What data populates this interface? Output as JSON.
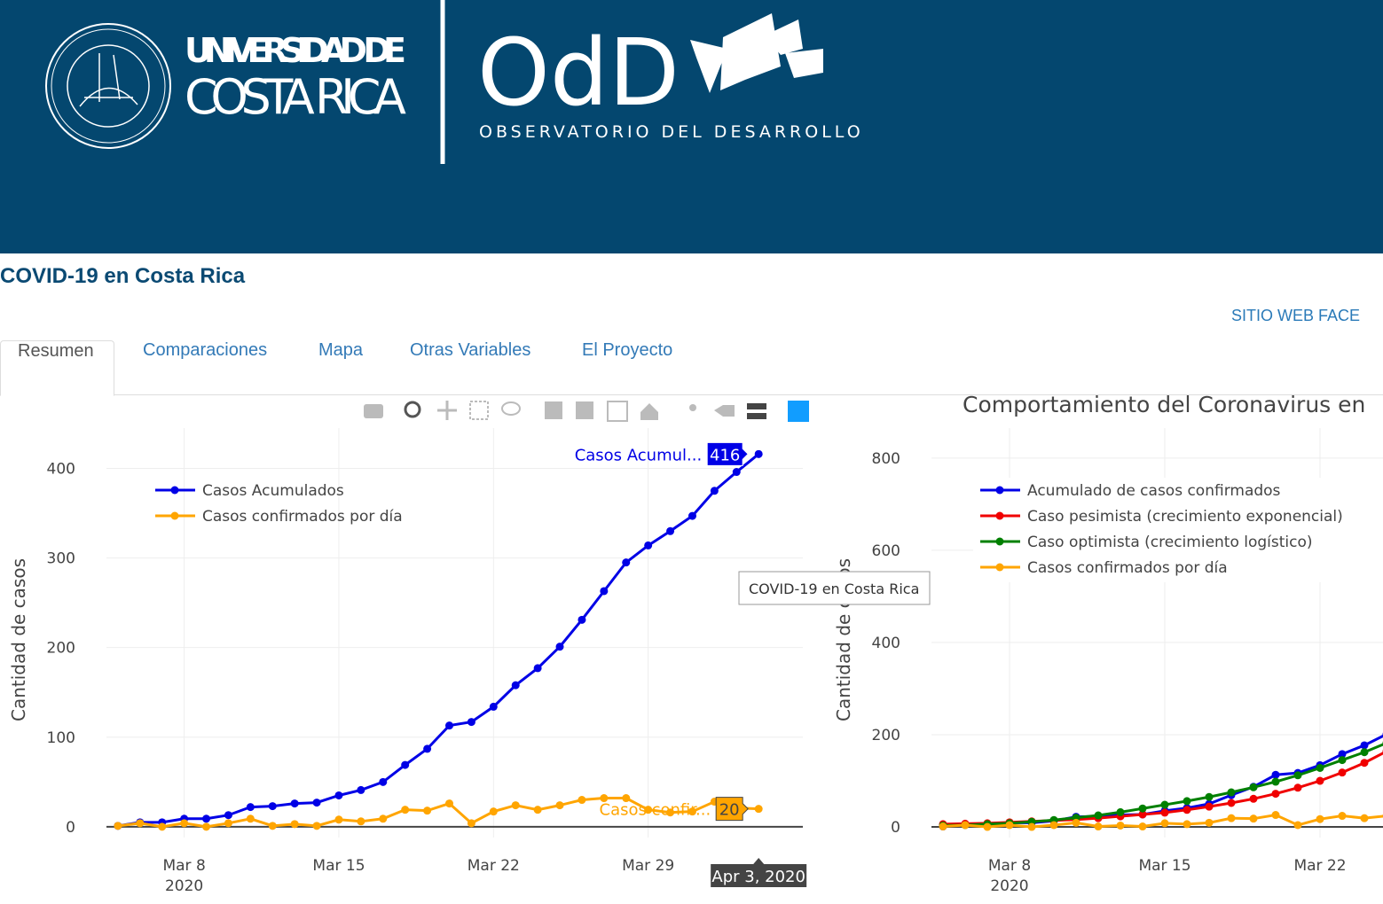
{
  "header": {
    "university": [
      "UNIVERSIDAD DE",
      "COSTA RICA"
    ],
    "logo": "OdD",
    "observatory": "OBSERVATORIO DEL DESARROLLO"
  },
  "page_title": "COVID-19 en Costa Rica",
  "link": "SITIO WEB FACE",
  "tabs": [
    "Resumen",
    "Comparaciones",
    "Mapa",
    "Otras Variables",
    "El Proyecto"
  ],
  "charts": [
    {
      "type": "line",
      "ylabel": "Cantidad de casos",
      "legend_position": "top left",
      "grid": true,
      "x": [
        "2020-03-05",
        "2020-03-06",
        "2020-03-07",
        "2020-03-08",
        "2020-03-09",
        "2020-03-10",
        "2020-03-11",
        "2020-03-12",
        "2020-03-13",
        "2020-03-14",
        "2020-03-15",
        "2020-03-16",
        "2020-03-17",
        "2020-03-18",
        "2020-03-19",
        "2020-03-20",
        "2020-03-21",
        "2020-03-22",
        "2020-03-23",
        "2020-03-24",
        "2020-03-25",
        "2020-03-26",
        "2020-03-27",
        "2020-03-28",
        "2020-03-29",
        "2020-03-30",
        "2020-03-31",
        "2020-04-01",
        "2020-04-02",
        "2020-04-03"
      ],
      "xlim": [
        "2020-03-04",
        "2020-04-05"
      ],
      "xticks": [
        {
          "value": "2020-03-08",
          "label": "Mar 8"
        },
        {
          "value": "2020-03-15",
          "label": "Mar 15"
        },
        {
          "value": "2020-03-22",
          "label": "Mar 22"
        },
        {
          "value": "2020-03-29",
          "label": "Mar 29"
        }
      ],
      "xtick_year": "2020",
      "ylim": [
        -12,
        445
      ],
      "yticks": [
        0,
        100,
        200,
        300,
        400
      ],
      "series": [
        {
          "name": "Casos Acumulados",
          "color": "#0000e6",
          "values": [
            1,
            5,
            5,
            9,
            9,
            13,
            22,
            23,
            26,
            27,
            35,
            41,
            50,
            69,
            87,
            113,
            117,
            134,
            158,
            177,
            201,
            231,
            263,
            295,
            314,
            330,
            347,
            375,
            396,
            416
          ]
        },
        {
          "name": "Casos confirmados por día",
          "color": "#ffa500",
          "values": [
            1,
            4,
            0,
            4,
            0,
            4,
            9,
            1,
            3,
            1,
            8,
            6,
            9,
            19,
            18,
            26,
            4,
            17,
            24,
            19,
            24,
            30,
            32,
            32,
            19,
            16,
            17,
            28,
            21,
            20
          ]
        }
      ],
      "hover": {
        "names": [
          "Casos Acumul...",
          "Casos confir..."
        ],
        "date": "Apr 3, 2020"
      }
    },
    {
      "type": "line",
      "title": "Comportamiento del Coronavirus en",
      "ylabel": "Cantidad de casos",
      "legend_position": "top left",
      "grid": true,
      "x": [
        "2020-03-05",
        "2020-03-06",
        "2020-03-07",
        "2020-03-08",
        "2020-03-09",
        "2020-03-10",
        "2020-03-11",
        "2020-03-12",
        "2020-03-13",
        "2020-03-14",
        "2020-03-15",
        "2020-03-16",
        "2020-03-17",
        "2020-03-18",
        "2020-03-19",
        "2020-03-20",
        "2020-03-21",
        "2020-03-22",
        "2020-03-23",
        "2020-03-24",
        "2020-03-25"
      ],
      "xlim": [
        "2020-03-04",
        "2020-04-05"
      ],
      "xticks": [
        {
          "value": "2020-03-08",
          "label": "Mar 8"
        },
        {
          "value": "2020-03-15",
          "label": "Mar 15"
        },
        {
          "value": "2020-03-22",
          "label": "Mar 22"
        }
      ],
      "xtick_year": "2020",
      "ylim": [
        -23,
        865
      ],
      "yticks": [
        0,
        200,
        400,
        600,
        800
      ],
      "series": [
        {
          "name": "Acumulado de casos confirmados",
          "color": "#0000e6",
          "values": [
            1,
            5,
            5,
            9,
            9,
            13,
            22,
            23,
            26,
            27,
            35,
            41,
            50,
            69,
            87,
            113,
            117,
            134,
            158,
            177,
            201
          ]
        },
        {
          "name": "Caso pesimista (crecimiento exponencial)",
          "color": "#f00000",
          "values": [
            6,
            7,
            8,
            10,
            12,
            14,
            16,
            19,
            23,
            27,
            31,
            37,
            44,
            52,
            61,
            72,
            85,
            100,
            118,
            139,
            164
          ]
        },
        {
          "name": "Caso optimista (crecimiento logístico)",
          "color": "#008000",
          "values": [
            3,
            4,
            6,
            8,
            11,
            15,
            20,
            25,
            32,
            40,
            48,
            56,
            65,
            75,
            86,
            98,
            112,
            128,
            145,
            162,
            182
          ]
        },
        {
          "name": "Casos confirmados por día",
          "color": "#ffa500",
          "values": [
            1,
            4,
            0,
            4,
            0,
            4,
            9,
            1,
            3,
            1,
            8,
            6,
            9,
            19,
            18,
            26,
            4,
            17,
            24,
            19,
            24
          ]
        }
      ],
      "tooltip": "COVID-19 en Costa Rica"
    }
  ]
}
